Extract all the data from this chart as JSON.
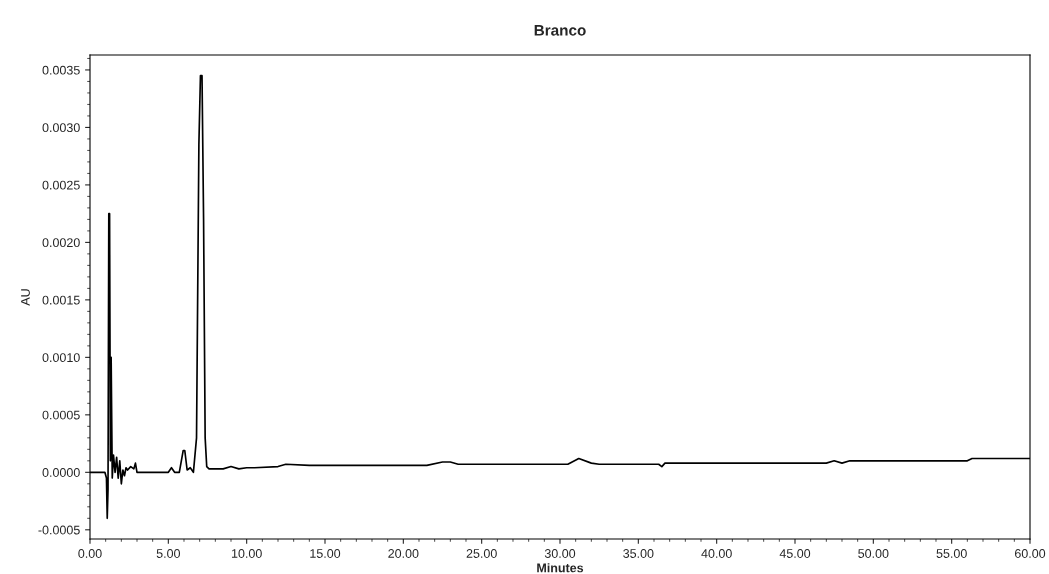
{
  "chart_data": {
    "type": "line",
    "title": "Branco",
    "xlabel": "Minutes",
    "ylabel": "AU",
    "series": [
      {
        "color": "#000000",
        "x": [
          0.0,
          0.95,
          1.05,
          1.1,
          1.15,
          1.2,
          1.25,
          1.3,
          1.35,
          1.42,
          1.5,
          1.6,
          1.7,
          1.8,
          1.9,
          2.0,
          2.1,
          2.2,
          2.3,
          2.4,
          2.6,
          2.8,
          2.9,
          3.0,
          5.0,
          5.2,
          5.4,
          5.7,
          5.95,
          6.05,
          6.2,
          6.4,
          6.6,
          6.8,
          6.95,
          7.05,
          7.15,
          7.25,
          7.35,
          7.45,
          7.6,
          8.5,
          9.0,
          9.5,
          10.0,
          10.5,
          12.0,
          12.5,
          14.0,
          21.5,
          22.5,
          23.0,
          23.5,
          30.5,
          31.2,
          32.0,
          32.5,
          36.3,
          36.5,
          36.7,
          47.0,
          47.5,
          48.0,
          48.5,
          56.0,
          56.3,
          60.0
        ],
        "values": [
          0.0,
          0.0,
          -5e-05,
          -0.0004,
          -0.00015,
          0.00225,
          0.00225,
          0.0001,
          0.001,
          -5e-05,
          0.00015,
          0.0,
          0.00013,
          -5e-05,
          0.0001,
          -0.0001,
          2e-05,
          -3e-05,
          4e-05,
          2e-05,
          5e-05,
          3e-05,
          8e-05,
          0.0,
          0.0,
          4e-05,
          0.0,
          0.0,
          0.00019,
          0.00019,
          2e-05,
          4e-05,
          0.0,
          0.0003,
          0.00285,
          0.00345,
          0.00345,
          0.0022,
          0.0003,
          5e-05,
          3e-05,
          3e-05,
          5e-05,
          3e-05,
          4e-05,
          4e-05,
          5e-05,
          7e-05,
          6e-05,
          6e-05,
          9e-05,
          9e-05,
          7e-05,
          7e-05,
          0.00012,
          8e-05,
          7e-05,
          7e-05,
          5e-05,
          8e-05,
          8e-05,
          0.0001,
          8e-05,
          0.0001,
          0.0001,
          0.00012,
          0.00012
        ]
      }
    ],
    "xlim": [
      0,
      60
    ],
    "ylim": [
      -0.00058,
      0.00363
    ],
    "xticks": [
      {
        "value": 0,
        "label": "0.00"
      },
      {
        "value": 5,
        "label": "5.00"
      },
      {
        "value": 10,
        "label": "10.00"
      },
      {
        "value": 15,
        "label": "15.00"
      },
      {
        "value": 20,
        "label": "20.00"
      },
      {
        "value": 25,
        "label": "25.00"
      },
      {
        "value": 30,
        "label": "30.00"
      },
      {
        "value": 35,
        "label": "35.00"
      },
      {
        "value": 40,
        "label": "40.00"
      },
      {
        "value": 45,
        "label": "45.00"
      },
      {
        "value": 50,
        "label": "50.00"
      },
      {
        "value": 55,
        "label": "55.00"
      },
      {
        "value": 60,
        "label": "60.00"
      }
    ],
    "yticks": [
      {
        "value": -0.0005,
        "label": "-0.0005"
      },
      {
        "value": 0,
        "label": "0.0000"
      },
      {
        "value": 0.0005,
        "label": "0.0005"
      },
      {
        "value": 0.001,
        "label": "0.0010"
      },
      {
        "value": 0.0015,
        "label": "0.0015"
      },
      {
        "value": 0.002,
        "label": "0.0020"
      },
      {
        "value": 0.0025,
        "label": "0.0025"
      },
      {
        "value": 0.003,
        "label": "0.0030"
      },
      {
        "value": 0.0035,
        "label": "0.0035"
      }
    ],
    "grid": false,
    "legend": false
  }
}
